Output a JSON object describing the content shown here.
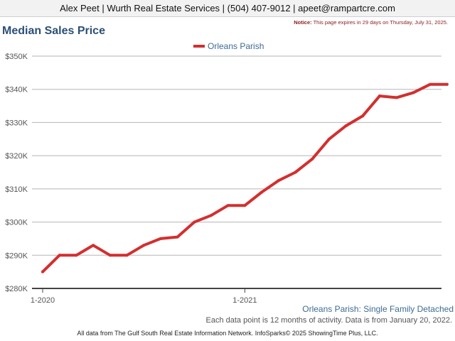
{
  "header": {
    "contact_line": "Alex Peet | Wurth Real Estate Services | (504) 407-9012 | apeet@rampartcre.com"
  },
  "notice": {
    "label": "Notice:",
    "text": "This page expires in 29 days on Thursday, July 31, 2025."
  },
  "footer": {
    "caption": "Orleans Parish: Single Family Detached",
    "note": "Each data point is 12 months of activity. Data is from January 20, 2022.",
    "source": "All data from The Gulf South Real Estate Information Network. InfoSparks© 2025 ShowingTime Plus, LLC."
  },
  "colors": {
    "series": "#d32f2f",
    "title": "#2b4f76",
    "grid": "#b5b5b5"
  },
  "chart_data": {
    "type": "line",
    "title": "Median Sales Price",
    "xlabel": "",
    "ylabel": "",
    "legend_position": "top-center",
    "grid": true,
    "ylim": [
      280000,
      350000
    ],
    "y_ticks": [
      280000,
      290000,
      300000,
      310000,
      320000,
      330000,
      340000,
      350000
    ],
    "y_tick_labels": [
      "$280K",
      "$290K",
      "$300K",
      "$310K",
      "$320K",
      "$330K",
      "$340K",
      "$350K"
    ],
    "x_tick_labels": [
      {
        "label": "1-2020",
        "index": 0
      },
      {
        "label": "1-2021",
        "index": 12
      }
    ],
    "x": [
      "2020-01",
      "2020-02",
      "2020-03",
      "2020-04",
      "2020-05",
      "2020-06",
      "2020-07",
      "2020-08",
      "2020-09",
      "2020-10",
      "2020-11",
      "2020-12",
      "2021-01",
      "2021-02",
      "2021-03",
      "2021-04",
      "2021-05",
      "2021-06",
      "2021-07",
      "2021-08",
      "2021-09",
      "2021-10",
      "2021-11",
      "2021-12",
      "2022-01"
    ],
    "series": [
      {
        "name": "Orleans Parish",
        "values": [
          285000,
          290000,
          290000,
          293000,
          290000,
          290000,
          293000,
          295000,
          295500,
          300000,
          302000,
          305000,
          305000,
          309000,
          312500,
          315000,
          319000,
          325000,
          329000,
          332000,
          338000,
          337500,
          339000,
          341500,
          341500
        ]
      }
    ]
  }
}
